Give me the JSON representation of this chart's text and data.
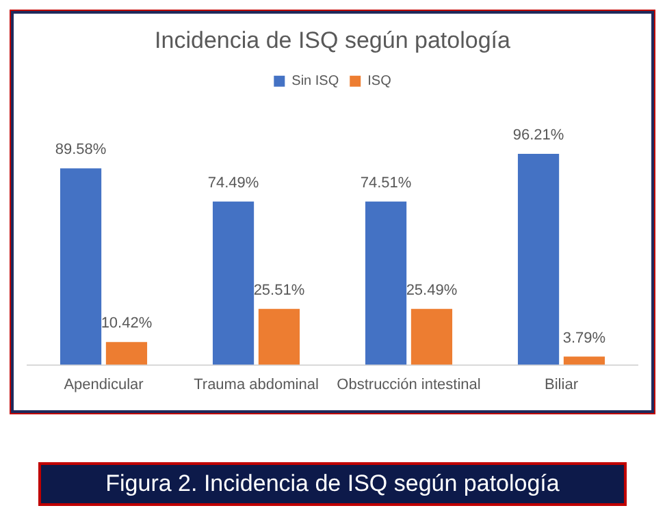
{
  "chart_data": {
    "type": "bar",
    "title": "Incidencia de ISQ según patología",
    "categories": [
      "Apendicular",
      "Trauma abdominal",
      "Obstrucción intestinal",
      "Biliar"
    ],
    "series": [
      {
        "name": "Sin ISQ",
        "color": "#4472c4",
        "values": [
          89.58,
          74.49,
          74.51,
          96.21
        ],
        "value_labels": [
          "89.58%",
          "74.49%",
          "74.51%",
          "96.21%"
        ]
      },
      {
        "name": "ISQ",
        "color": "#ed7d31",
        "values": [
          10.42,
          25.51,
          25.49,
          3.79
        ],
        "value_labels": [
          "10.42%",
          "25.51%",
          "25.49%",
          "3.79%"
        ]
      }
    ],
    "legend": "top",
    "grid": false,
    "annotations": [
      "Figura 2. Incidencia de ISQ según patología"
    ]
  }
}
